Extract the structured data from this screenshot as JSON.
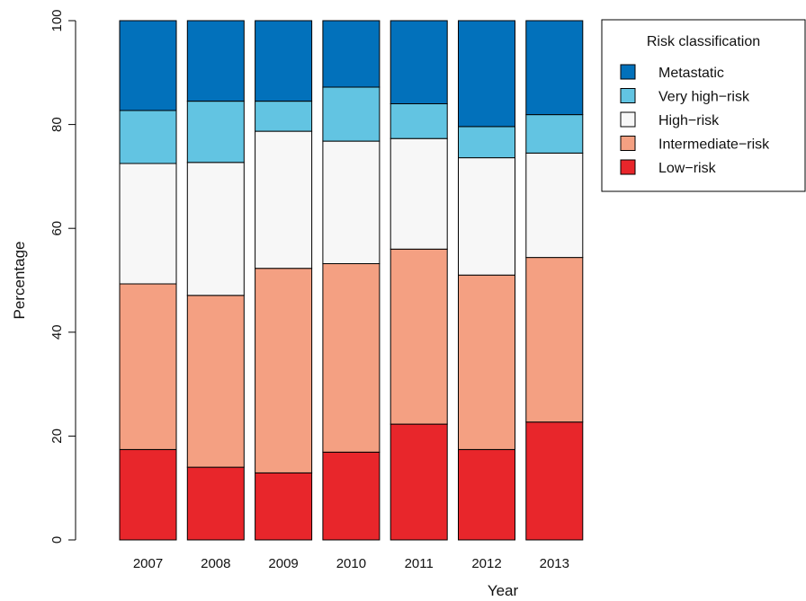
{
  "chart_data": {
    "type": "bar",
    "stacked": true,
    "categories": [
      "2007",
      "2008",
      "2009",
      "2010",
      "2011",
      "2012",
      "2013"
    ],
    "series": [
      {
        "name": "Low−risk",
        "color": "#e8262b",
        "values": [
          17.4,
          14.0,
          12.9,
          16.9,
          22.3,
          17.4,
          22.7
        ]
      },
      {
        "name": "Intermediate−risk",
        "color": "#f4a082",
        "values": [
          31.9,
          33.1,
          39.4,
          36.3,
          33.7,
          33.6,
          31.7
        ]
      },
      {
        "name": "High−risk",
        "color": "#f7f7f7",
        "values": [
          23.2,
          25.6,
          26.4,
          23.6,
          21.3,
          22.6,
          20.1
        ]
      },
      {
        "name": "Very high−risk",
        "color": "#62c4e2",
        "values": [
          10.2,
          11.8,
          5.8,
          10.4,
          6.7,
          6.0,
          7.4
        ]
      },
      {
        "name": "Metastatic",
        "color": "#0271bb",
        "values": [
          17.3,
          15.5,
          15.5,
          12.8,
          16.0,
          20.4,
          18.1
        ]
      }
    ],
    "xlabel": "Year",
    "ylabel": "Percentage",
    "ylim": [
      0,
      100
    ],
    "yticks": [
      0,
      20,
      40,
      60,
      80,
      100
    ],
    "grid": false,
    "legend": {
      "title": "Risk classification",
      "placement": "top-right",
      "order": [
        "Metastatic",
        "Very high−risk",
        "High−risk",
        "Intermediate−risk",
        "Low−risk"
      ]
    }
  }
}
